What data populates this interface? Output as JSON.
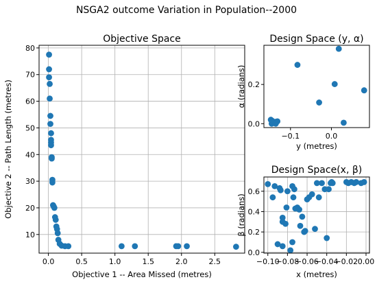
{
  "figure": {
    "suptitle": "NSGA2 outcome Variation in Population--2000"
  },
  "colors": {
    "marker": "#1f77b4",
    "grid": "#b0b0b0",
    "axes": "#000000"
  },
  "chart_data": [
    {
      "id": "objective",
      "type": "scatter",
      "title": "Objective Space",
      "xlabel": "Objective 1 -- Area Missed (metres)",
      "ylabel": "Objective 2 -- Path Length (metres)",
      "xlim": [
        -0.14,
        2.95
      ],
      "ylim": [
        3.0,
        81.0
      ],
      "xticks": [
        0.0,
        0.5,
        1.0,
        1.5,
        2.0,
        2.5
      ],
      "xticklabels": [
        "0.0",
        "0.5",
        "1.0",
        "1.5",
        "2.0",
        "2.5"
      ],
      "yticks": [
        10,
        20,
        30,
        40,
        50,
        60,
        70,
        80
      ],
      "yticklabels": [
        "10",
        "20",
        "30",
        "40",
        "50",
        "60",
        "70",
        "80"
      ],
      "grid": true,
      "x": [
        0.01,
        0.01,
        0.01,
        0.02,
        0.02,
        0.03,
        0.03,
        0.04,
        0.04,
        0.04,
        0.04,
        0.05,
        0.05,
        0.06,
        0.06,
        0.07,
        0.08,
        0.09,
        0.1,
        0.11,
        0.12,
        0.13,
        0.14,
        0.15,
        0.17,
        0.2,
        0.25,
        0.3,
        1.1,
        1.3,
        1.92,
        1.95,
        2.08,
        2.82
      ],
      "y": [
        77.5,
        72.0,
        69.0,
        66.5,
        61.0,
        54.5,
        51.5,
        48.0,
        45.5,
        44.5,
        43.5,
        39.0,
        38.5,
        30.5,
        29.5,
        21.0,
        20.5,
        20.0,
        16.5,
        15.5,
        13.0,
        12.0,
        10.5,
        8.0,
        6.5,
        5.8,
        5.6,
        5.6,
        5.6,
        5.6,
        5.6,
        5.6,
        5.6,
        5.4
      ]
    },
    {
      "id": "design-y-alpha",
      "type": "scatter",
      "title": "Design Space (y, α)",
      "xlabel": "y (metres)",
      "ylabel": "α (radians)",
      "xlim": [
        -0.165,
        0.093
      ],
      "ylim": [
        -0.02,
        0.4
      ],
      "xticks": [
        -0.1,
        0.0
      ],
      "xticklabels": [
        "−0.1",
        "0.0"
      ],
      "yticks": [
        0.0,
        0.2
      ],
      "yticklabels": [
        "0.0",
        "0.2"
      ],
      "grid": false,
      "x": [
        -0.148,
        -0.145,
        -0.142,
        -0.14,
        -0.138,
        -0.135,
        -0.132,
        -0.146,
        -0.14,
        -0.136,
        -0.083,
        -0.03,
        0.008,
        0.018,
        0.03,
        0.08
      ],
      "y": [
        0.02,
        0.015,
        0.01,
        0.008,
        0.005,
        0.01,
        0.012,
        0.0,
        0.003,
        0.0,
        0.3,
        0.108,
        0.202,
        0.382,
        0.005,
        0.17
      ]
    },
    {
      "id": "design-x-beta",
      "type": "scatter",
      "title": "Design Space(x, β)",
      "xlabel": "x (metres)",
      "ylabel": "β (radians)",
      "xlim": [
        -0.104,
        0.0035
      ],
      "ylim": [
        -0.008,
        0.74
      ],
      "xticks": [
        -0.1,
        -0.08,
        -0.06,
        -0.04,
        -0.02,
        0.0
      ],
      "xticklabels": [
        "−0.10",
        "−0.08",
        "−0.06",
        "−0.04",
        "−0.02",
        "0.00"
      ],
      "yticks": [
        0.0,
        0.2,
        0.4,
        0.6
      ],
      "yticklabels": [
        "0.0",
        "0.2",
        "0.4",
        "0.6"
      ],
      "grid": true,
      "x": [
        -0.1,
        -0.095,
        -0.093,
        -0.09,
        -0.088,
        -0.087,
        -0.085,
        -0.085,
        -0.085,
        -0.082,
        -0.081,
        -0.08,
        -0.077,
        -0.075,
        -0.075,
        -0.074,
        -0.073,
        -0.072,
        -0.07,
        -0.068,
        -0.067,
        -0.065,
        -0.063,
        -0.062,
        -0.06,
        -0.058,
        -0.055,
        -0.052,
        -0.05,
        -0.048,
        -0.045,
        -0.042,
        -0.04,
        -0.038,
        -0.036,
        -0.035,
        -0.034,
        -0.02,
        -0.018,
        -0.015,
        -0.012,
        -0.01,
        -0.005,
        -0.002
      ],
      "y": [
        0.67,
        0.54,
        0.65,
        0.08,
        0.63,
        0.61,
        0.06,
        0.34,
        0.3,
        0.28,
        0.44,
        0.6,
        0.02,
        0.1,
        0.65,
        0.54,
        0.62,
        0.43,
        0.44,
        0.42,
        0.26,
        0.35,
        0.2,
        0.21,
        0.52,
        0.54,
        0.57,
        0.23,
        0.68,
        0.54,
        0.68,
        0.62,
        0.14,
        0.62,
        0.68,
        0.69,
        0.68,
        0.69,
        0.68,
        0.69,
        0.68,
        0.69,
        0.68,
        0.69
      ]
    }
  ]
}
